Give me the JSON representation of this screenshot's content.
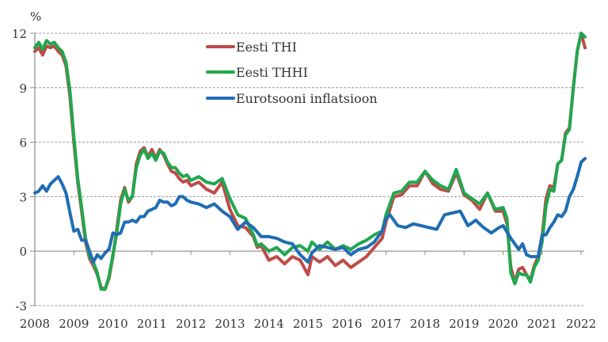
{
  "chart_data": {
    "type": "line",
    "title": "",
    "ylabel": "%",
    "xlabel": "",
    "ylim": [
      -3,
      12
    ],
    "yticks": [
      -3,
      0,
      3,
      6,
      9,
      12
    ],
    "xlim": [
      2008,
      2022.15
    ],
    "xticks": [
      "2008",
      "2009",
      "2010",
      "2011",
      "2012",
      "2013",
      "2014",
      "2015",
      "2016",
      "2017",
      "2018",
      "2019",
      "2020",
      "2021",
      "2022"
    ],
    "grid": "horizontal dashed",
    "legend_position": "top-center",
    "series": [
      {
        "name": "Eesti THI",
        "color": "#be4b48",
        "x": [
          2008.0,
          2008.1,
          2008.2,
          2008.3,
          2008.4,
          2008.5,
          2008.6,
          2008.7,
          2008.8,
          2008.9,
          2009.0,
          2009.1,
          2009.2,
          2009.3,
          2009.4,
          2009.5,
          2009.6,
          2009.7,
          2009.8,
          2009.9,
          2010.0,
          2010.1,
          2010.2,
          2010.3,
          2010.4,
          2010.5,
          2010.6,
          2010.7,
          2010.8,
          2010.9,
          2011.0,
          2011.1,
          2011.2,
          2011.3,
          2011.4,
          2011.5,
          2011.6,
          2011.7,
          2011.8,
          2011.9,
          2012.0,
          2012.2,
          2012.4,
          2012.6,
          2012.8,
          2013.0,
          2013.2,
          2013.4,
          2013.6,
          2013.7,
          2013.8,
          2014.0,
          2014.2,
          2014.4,
          2014.6,
          2014.8,
          2015.0,
          2015.1,
          2015.3,
          2015.5,
          2015.7,
          2015.9,
          2016.1,
          2016.3,
          2016.5,
          2016.7,
          2016.9,
          2017.0,
          2017.2,
          2017.4,
          2017.6,
          2017.8,
          2018.0,
          2018.2,
          2018.4,
          2018.6,
          2018.8,
          2019.0,
          2019.2,
          2019.4,
          2019.6,
          2019.8,
          2020.0,
          2020.1,
          2020.2,
          2020.3,
          2020.4,
          2020.5,
          2020.6,
          2020.7,
          2020.8,
          2020.9,
          2021.0,
          2021.1,
          2021.2,
          2021.3,
          2021.4,
          2021.5,
          2021.6,
          2021.7,
          2021.8,
          2021.9,
          2022.0,
          2022.05,
          2022.1
        ],
        "values": [
          11.0,
          11.2,
          10.8,
          11.3,
          11.2,
          11.3,
          11.0,
          10.8,
          10.2,
          8.5,
          6.0,
          3.8,
          2.2,
          0.5,
          -0.4,
          -0.8,
          -1.3,
          -2.0,
          -2.1,
          -1.5,
          -0.3,
          1.2,
          2.8,
          3.5,
          2.7,
          3.0,
          4.8,
          5.5,
          5.7,
          5.2,
          5.6,
          5.1,
          5.6,
          5.3,
          4.8,
          4.4,
          4.3,
          4.0,
          3.8,
          3.9,
          3.6,
          3.8,
          3.4,
          3.2,
          3.8,
          2.3,
          1.4,
          1.3,
          0.8,
          0.2,
          0.3,
          -0.5,
          -0.3,
          -0.7,
          -0.3,
          -0.5,
          -1.3,
          -0.3,
          -0.6,
          -0.3,
          -0.8,
          -0.5,
          -0.9,
          -0.6,
          -0.3,
          0.2,
          0.7,
          1.6,
          3.0,
          3.1,
          3.6,
          3.6,
          4.4,
          3.7,
          3.4,
          3.3,
          4.3,
          3.1,
          2.8,
          2.3,
          3.2,
          2.2,
          2.2,
          1.5,
          -0.9,
          -1.7,
          -1.0,
          -0.9,
          -1.3,
          -1.6,
          -0.8,
          -0.3,
          0.8,
          2.9,
          3.6,
          3.5,
          4.8,
          5.0,
          6.5,
          6.8,
          9.0,
          11.0,
          12.0,
          11.6,
          11.2
        ]
      },
      {
        "name": "Eesti THHI",
        "color": "#21a74e",
        "x": [
          2008.0,
          2008.1,
          2008.2,
          2008.3,
          2008.4,
          2008.5,
          2008.6,
          2008.7,
          2008.8,
          2008.9,
          2009.0,
          2009.1,
          2009.2,
          2009.3,
          2009.4,
          2009.5,
          2009.6,
          2009.7,
          2009.8,
          2009.9,
          2010.0,
          2010.1,
          2010.2,
          2010.3,
          2010.4,
          2010.5,
          2010.6,
          2010.7,
          2010.8,
          2010.9,
          2011.0,
          2011.1,
          2011.2,
          2011.3,
          2011.4,
          2011.5,
          2011.6,
          2011.7,
          2011.8,
          2011.9,
          2012.0,
          2012.2,
          2012.4,
          2012.6,
          2012.8,
          2013.0,
          2013.2,
          2013.4,
          2013.6,
          2013.7,
          2013.8,
          2014.0,
          2014.2,
          2014.4,
          2014.6,
          2014.8,
          2015.0,
          2015.1,
          2015.3,
          2015.5,
          2015.7,
          2015.9,
          2016.1,
          2016.3,
          2016.5,
          2016.7,
          2016.9,
          2017.0,
          2017.2,
          2017.4,
          2017.6,
          2017.8,
          2018.0,
          2018.2,
          2018.4,
          2018.6,
          2018.8,
          2019.0,
          2019.2,
          2019.4,
          2019.6,
          2019.8,
          2020.0,
          2020.1,
          2020.2,
          2020.3,
          2020.4,
          2020.5,
          2020.6,
          2020.7,
          2020.8,
          2020.9,
          2021.0,
          2021.1,
          2021.2,
          2021.3,
          2021.4,
          2021.5,
          2021.6,
          2021.7,
          2021.8,
          2021.9,
          2022.0,
          2022.05,
          2022.1
        ],
        "values": [
          11.2,
          11.5,
          11.1,
          11.6,
          11.4,
          11.5,
          11.2,
          11.0,
          10.4,
          8.8,
          6.3,
          4.0,
          2.4,
          0.7,
          -0.3,
          -0.6,
          -1.2,
          -2.1,
          -2.1,
          -1.4,
          -0.2,
          1.0,
          2.6,
          3.4,
          2.8,
          3.0,
          4.6,
          5.3,
          5.6,
          5.1,
          5.4,
          5.0,
          5.5,
          5.4,
          4.9,
          4.6,
          4.6,
          4.3,
          4.1,
          4.2,
          3.9,
          4.1,
          3.8,
          3.7,
          4.0,
          2.9,
          2.0,
          1.8,
          0.9,
          0.3,
          0.4,
          0.0,
          0.2,
          -0.2,
          0.2,
          0.3,
          0.0,
          0.5,
          0.1,
          0.5,
          0.1,
          0.3,
          0.1,
          0.4,
          0.6,
          0.9,
          1.1,
          2.0,
          3.2,
          3.3,
          3.8,
          3.8,
          4.4,
          3.9,
          3.6,
          3.4,
          4.5,
          3.2,
          2.9,
          2.6,
          3.2,
          2.3,
          2.4,
          1.8,
          -1.2,
          -1.8,
          -1.2,
          -1.3,
          -1.3,
          -1.7,
          -0.9,
          -0.5,
          0.5,
          2.5,
          3.4,
          3.3,
          4.8,
          5.0,
          6.4,
          6.7,
          9.0,
          11.0,
          12.0,
          11.9,
          11.8
        ]
      },
      {
        "name": "Eurotsooni inflatsioon",
        "color": "#1f6db3",
        "x": [
          2008.0,
          2008.1,
          2008.2,
          2008.3,
          2008.4,
          2008.5,
          2008.6,
          2008.7,
          2008.8,
          2008.9,
          2009.0,
          2009.1,
          2009.2,
          2009.3,
          2009.4,
          2009.5,
          2009.6,
          2009.7,
          2009.8,
          2009.9,
          2010.0,
          2010.1,
          2010.2,
          2010.3,
          2010.4,
          2010.5,
          2010.6,
          2010.7,
          2010.8,
          2010.9,
          2011.0,
          2011.1,
          2011.2,
          2011.3,
          2011.4,
          2011.5,
          2011.6,
          2011.7,
          2011.8,
          2011.9,
          2012.0,
          2012.2,
          2012.4,
          2012.6,
          2012.8,
          2013.0,
          2013.2,
          2013.4,
          2013.6,
          2013.8,
          2014.0,
          2014.2,
          2014.4,
          2014.6,
          2014.8,
          2015.0,
          2015.1,
          2015.3,
          2015.5,
          2015.7,
          2015.9,
          2016.1,
          2016.3,
          2016.5,
          2016.7,
          2016.9,
          2017.0,
          2017.1,
          2017.3,
          2017.5,
          2017.7,
          2017.9,
          2018.1,
          2018.3,
          2018.5,
          2018.7,
          2018.9,
          2019.1,
          2019.3,
          2019.5,
          2019.7,
          2019.9,
          2020.0,
          2020.2,
          2020.4,
          2020.5,
          2020.6,
          2020.7,
          2020.9,
          2021.0,
          2021.1,
          2021.2,
          2021.3,
          2021.4,
          2021.5,
          2021.6,
          2021.7,
          2021.8,
          2021.9,
          2022.0,
          2022.1
        ],
        "values": [
          3.2,
          3.3,
          3.6,
          3.3,
          3.7,
          3.9,
          4.1,
          3.7,
          3.2,
          2.1,
          1.1,
          1.2,
          0.6,
          0.6,
          0.0,
          -0.6,
          -0.2,
          -0.4,
          -0.1,
          0.1,
          1.0,
          0.9,
          1.0,
          1.6,
          1.6,
          1.7,
          1.6,
          1.9,
          1.9,
          2.2,
          2.3,
          2.4,
          2.8,
          2.7,
          2.7,
          2.5,
          2.6,
          3.0,
          3.0,
          2.8,
          2.7,
          2.6,
          2.4,
          2.6,
          2.2,
          1.9,
          1.2,
          1.6,
          1.3,
          0.8,
          0.8,
          0.7,
          0.5,
          0.4,
          -0.2,
          -0.6,
          -0.1,
          0.3,
          0.2,
          0.1,
          0.2,
          -0.2,
          0.1,
          0.2,
          0.5,
          1.1,
          1.8,
          2.0,
          1.4,
          1.3,
          1.5,
          1.4,
          1.3,
          1.2,
          2.0,
          2.1,
          2.2,
          1.4,
          1.7,
          1.3,
          1.0,
          1.3,
          1.4,
          0.7,
          0.1,
          0.4,
          -0.2,
          -0.3,
          -0.3,
          0.9,
          0.9,
          1.3,
          1.6,
          2.0,
          1.9,
          2.2,
          3.0,
          3.4,
          4.1,
          4.9,
          5.1
        ]
      }
    ]
  }
}
